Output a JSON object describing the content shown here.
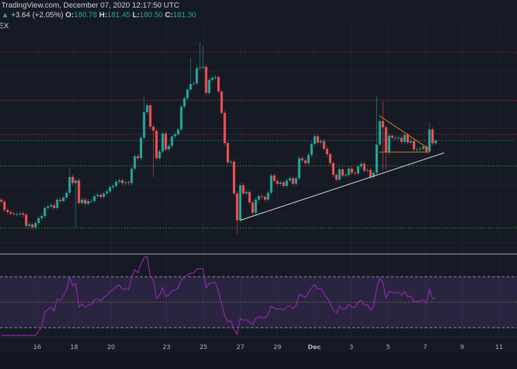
{
  "header": {
    "title": "TradingView.com, December 07, 2020 12:17:50 UTC",
    "change": "+3.64 (+2.05%)",
    "o_label": "O:",
    "o": "180.78",
    "h_label": "H:",
    "h": "181.45",
    "l_label": "L:",
    "l": "180.50",
    "c_label": "C:",
    "c": "181.30",
    "symbol_fragment": "EX"
  },
  "colors": {
    "up": "#26a69a",
    "down": "#ef5350",
    "background": "#161a25",
    "resistance": "#b71c1c",
    "support": "#2bb52b",
    "rsi": "#9c27b0",
    "rsi_band": "#7e57c2",
    "trendline": "#c9ccd4",
    "triangle": "#c77a22"
  },
  "chart_data": [
    {
      "type": "candlestick",
      "interval": "4h",
      "first_open": 170.55,
      "closes": [
        170.18,
        168.68,
        168.3,
        168.05,
        167.93,
        167.93,
        168.05,
        167.8,
        165.8,
        166.05,
        165.55,
        166.3,
        167.18,
        167.55,
        169.05,
        169.3,
        169.55,
        169.05,
        170.55,
        170.3,
        170.93,
        171.8,
        174.68,
        173.55,
        174.05,
        169.93,
        170.55,
        169.8,
        170.3,
        170.3,
        171.18,
        171.43,
        171.05,
        171.68,
        172.05,
        172.8,
        173.05,
        173.8,
        174.05,
        173.55,
        173.68,
        173.55,
        176.18,
        178.43,
        178.05,
        181.8,
        186.43,
        187.68,
        183.8,
        183.05,
        178.05,
        179.3,
        182.55,
        179.68,
        180.3,
        182.05,
        182.43,
        183.3,
        187.43,
        188.93,
        190.55,
        191.55,
        191.68,
        194.43,
        194.55,
        194.68,
        189.93,
        192.3,
        192.68,
        192.8,
        190.18,
        186.3,
        180.8,
        177.3,
        177.43,
        171.68,
        166.8,
        173.18,
        171.68,
        171.93,
        170.05,
        168.18,
        170.55,
        171.18,
        171.05,
        170.55,
        171.8,
        174.93,
        173.93,
        173.43,
        173.68,
        173.05,
        174.05,
        174.43,
        173.43,
        174.43,
        178.05,
        177.68,
        177.18,
        178.68,
        180.68,
        182.05,
        180.93,
        181.18,
        179.8,
        178.8,
        177.18,
        175.05,
        174.18,
        176.05,
        174.93,
        175.05,
        176.18,
        175.43,
        175.3,
        176.55,
        177.05,
        175.8,
        175.93,
        174.68,
        175.43,
        180.55,
        184.8,
        183.68,
        179.18,
        182.18,
        181.8,
        181.8,
        181.8,
        181.05,
        182.3,
        180.93,
        181.18,
        179.68,
        179.68,
        179.8,
        180.18,
        179.3,
        183.3,
        180.78,
        181.3
      ],
      "notable_wicks": {
        "22": {
          "high": 176.3
        },
        "24": {
          "low": 165.55
        },
        "46": {
          "high": 189.3
        },
        "49": {
          "low": 174.68
        },
        "61": {
          "high": 196.3
        },
        "64": {
          "high": 199.05
        },
        "65": {
          "high": 198.55
        },
        "76": {
          "low": 164.3
        },
        "121": {
          "high": 189.3
        },
        "123": {
          "high": 188.43,
          "low": 175.93
        },
        "124": {
          "low": 175.93
        },
        "138": {
          "high": 184.68
        },
        "140": {
          "high": 181.45,
          "low": 180.5
        }
      },
      "horizontal_levels": [
        {
          "price": 197.3,
          "kind": "resistance"
        },
        {
          "price": 188.55,
          "kind": "resistance"
        },
        {
          "price": 182.43,
          "kind": "resistance"
        },
        {
          "price": 176.68,
          "kind": "support"
        },
        {
          "price": 165.43,
          "kind": "support"
        }
      ],
      "last_price": 181.3,
      "trendlines": [
        {
          "kind": "ascending-support",
          "from": [
            77,
            166.8
          ],
          "to": [
            142.7,
            179.05
          ]
        },
        {
          "kind": "triangle-upper",
          "from": [
            121.8,
            185.8
          ],
          "to": [
            138.4,
            179.55
          ]
        },
        {
          "kind": "triangle-base",
          "from": [
            121.8,
            179.18
          ],
          "to": [
            137.8,
            179.18
          ]
        }
      ],
      "x_ticks": [
        {
          "label": "16",
          "date": "2020-11-16"
        },
        {
          "label": "18",
          "date": "2020-11-18"
        },
        {
          "label": "20",
          "date": "2020-11-20"
        },
        {
          "label": "23",
          "date": "2020-11-23"
        },
        {
          "label": "25",
          "date": "2020-11-25"
        },
        {
          "label": "27",
          "date": "2020-11-27"
        },
        {
          "label": "29",
          "date": "2020-11-29"
        },
        {
          "label": "Dec",
          "date": "2020-12-01",
          "bold": true
        },
        {
          "label": "3",
          "date": "2020-12-03"
        },
        {
          "label": "5",
          "date": "2020-12-05"
        },
        {
          "label": "7",
          "date": "2020-12-07"
        },
        {
          "label": "9",
          "date": "2020-12-09"
        },
        {
          "label": "11",
          "date": "2020-12-11"
        }
      ]
    },
    {
      "type": "line",
      "indicator": "RSI",
      "period": 14,
      "upper_band": 70,
      "middle": 50,
      "lower_band": 30
    }
  ]
}
